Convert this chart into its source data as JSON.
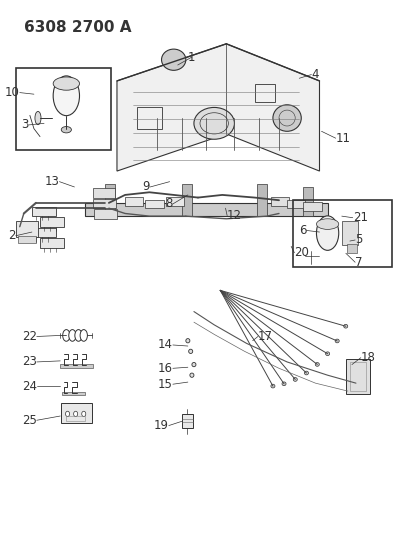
{
  "title": "6308 2700 A",
  "bg_color": "#ffffff",
  "line_color": "#333333",
  "title_fontsize": 11,
  "label_fontsize": 8.5,
  "figsize": [
    4.1,
    5.33
  ],
  "dpi": 100
}
